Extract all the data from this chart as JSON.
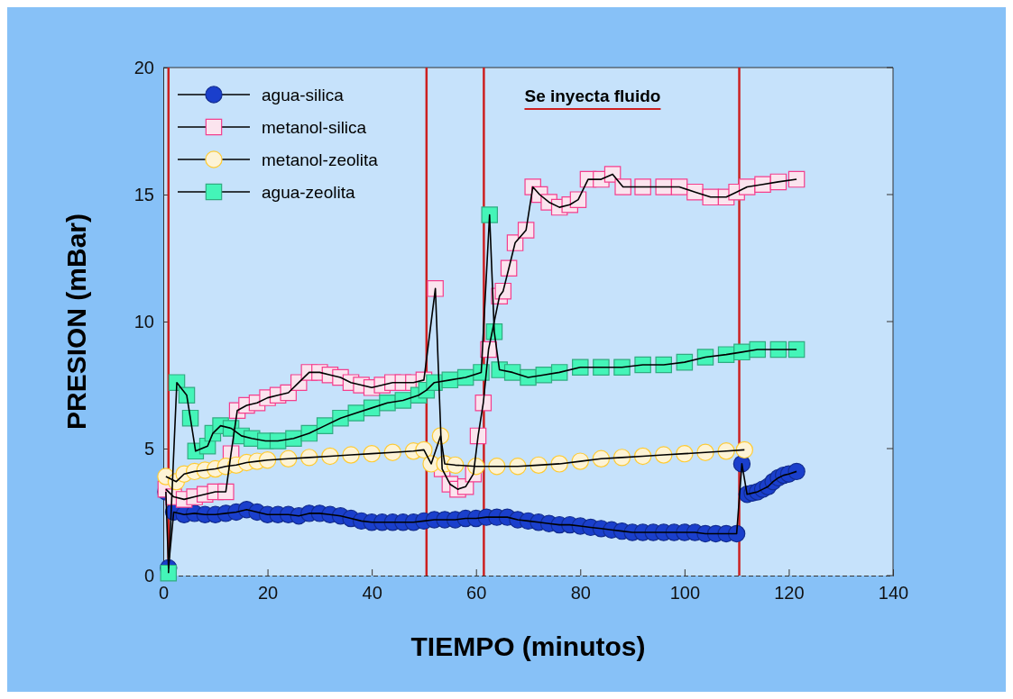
{
  "chart_data": {
    "type": "line",
    "xlabel": "TIEMPO (minutos)",
    "ylabel": "PRESION (mBar)",
    "xlim": [
      0,
      140
    ],
    "xticks": [
      0,
      20,
      40,
      60,
      80,
      100,
      120,
      140
    ],
    "ylim": [
      0,
      20
    ],
    "yticks": [
      0,
      5,
      10,
      15,
      20
    ],
    "grid": false,
    "legend": "top left",
    "line_style": "solid",
    "annotations": [
      "Se inyecta fluido"
    ],
    "ref_lines": [
      {
        "axis": "x",
        "value": 1,
        "color": "#cc2020"
      },
      {
        "axis": "x",
        "value": 50.5,
        "color": "#cc2020"
      },
      {
        "axis": "x",
        "value": 61.5,
        "color": "#cc2020"
      },
      {
        "axis": "x",
        "value": 110.5,
        "color": "#cc2020"
      }
    ],
    "series": [
      {
        "name": "agua-silica",
        "color": "#1a3fcc",
        "marker": "circle",
        "x": [
          0.5,
          1,
          2,
          4,
          6,
          8,
          10,
          12,
          14,
          16,
          18,
          20,
          22,
          24,
          26,
          28,
          30,
          32,
          34,
          36,
          38,
          40,
          42,
          44,
          46,
          48,
          50,
          52,
          54,
          56,
          58,
          60,
          62,
          64,
          66,
          68,
          70,
          72,
          74,
          76,
          78,
          80,
          82,
          84,
          86,
          88,
          90,
          92,
          94,
          96,
          98,
          100,
          102,
          104,
          106,
          108,
          110,
          111,
          112,
          113,
          114,
          115,
          116,
          117,
          118,
          119,
          120,
          121.5
        ],
        "values": [
          3.3,
          0.3,
          2.5,
          2.4,
          2.45,
          2.4,
          2.4,
          2.45,
          2.5,
          2.6,
          2.5,
          2.4,
          2.4,
          2.4,
          2.35,
          2.45,
          2.45,
          2.4,
          2.35,
          2.25,
          2.15,
          2.1,
          2.1,
          2.1,
          2.1,
          2.1,
          2.15,
          2.2,
          2.2,
          2.2,
          2.25,
          2.25,
          2.3,
          2.3,
          2.3,
          2.2,
          2.15,
          2.1,
          2.05,
          2,
          2,
          1.95,
          1.9,
          1.85,
          1.8,
          1.75,
          1.7,
          1.7,
          1.7,
          1.7,
          1.7,
          1.7,
          1.7,
          1.65,
          1.65,
          1.65,
          1.65,
          4.4,
          3.2,
          3.25,
          3.3,
          3.4,
          3.5,
          3.7,
          3.85,
          3.95,
          4,
          4.1
        ]
      },
      {
        "name": "metanol-silica",
        "color": "#fbe4ee",
        "marker": "square",
        "x": [
          0.5,
          2,
          4,
          6,
          8,
          10,
          12,
          13,
          14.2,
          16,
          18,
          20,
          22,
          24,
          26,
          28,
          30,
          32,
          34,
          36,
          38,
          40,
          42,
          44,
          46,
          48,
          50,
          52.2,
          53.5,
          55,
          56.5,
          58,
          59.5,
          60.4,
          61.4,
          62.4,
          64.5,
          65.2,
          66.3,
          67.5,
          69.6,
          70.9,
          72.2,
          74,
          76,
          78,
          79.6,
          81.5,
          84,
          86.2,
          88.2,
          92,
          96,
          99,
          102,
          105,
          108,
          110,
          112,
          115,
          118,
          121.5
        ],
        "values": [
          3.4,
          3.1,
          3,
          3.1,
          3.2,
          3.3,
          3.3,
          4.8,
          6.5,
          6.7,
          6.8,
          7,
          7.1,
          7.2,
          7.6,
          8,
          8,
          7.9,
          7.8,
          7.6,
          7.5,
          7.4,
          7.5,
          7.6,
          7.6,
          7.6,
          7.7,
          11.3,
          4.2,
          3.6,
          3.4,
          3.5,
          4,
          5.5,
          6.8,
          8.9,
          11,
          11.2,
          12.1,
          13.1,
          13.6,
          15.3,
          15,
          14.7,
          14.5,
          14.6,
          14.8,
          15.6,
          15.6,
          15.8,
          15.3,
          15.3,
          15.3,
          15.3,
          15.1,
          14.9,
          14.9,
          15.1,
          15.3,
          15.4,
          15.5,
          15.6
        ]
      },
      {
        "name": "metanol-zeolita",
        "color": "#fdf3d6",
        "marker": "circle",
        "x": [
          0.5,
          2.5,
          4,
          6,
          8,
          10,
          12,
          14,
          16,
          18,
          20,
          24,
          28,
          32,
          36,
          40,
          44,
          48,
          50,
          51.4,
          53.2,
          54,
          56,
          60,
          64,
          68,
          72,
          76,
          80,
          84,
          88,
          92,
          96,
          100,
          104,
          108,
          111.5
        ],
        "values": [
          3.9,
          3.7,
          4,
          4.1,
          4.15,
          4.2,
          4.3,
          4.35,
          4.45,
          4.5,
          4.55,
          4.6,
          4.65,
          4.7,
          4.75,
          4.8,
          4.85,
          4.9,
          4.95,
          4.4,
          5.5,
          4.4,
          4.35,
          4.3,
          4.3,
          4.3,
          4.35,
          4.4,
          4.5,
          4.6,
          4.65,
          4.7,
          4.75,
          4.8,
          4.85,
          4.9,
          4.95
        ]
      },
      {
        "name": "agua-zeolita",
        "color": "#44f5b8",
        "marker": "square",
        "x": [
          1,
          2.6,
          4.5,
          5.2,
          6.2,
          8.5,
          9.5,
          11,
          13,
          15,
          17,
          19.6,
          22,
          25,
          28,
          31,
          34,
          37,
          40,
          43,
          46,
          49,
          50.5,
          52,
          55,
          58,
          61,
          62.6,
          63.5,
          64.5,
          67,
          70,
          73,
          76,
          80,
          84,
          88,
          92,
          96,
          100,
          104,
          108,
          111,
          114,
          118,
          121.5
        ],
        "values": [
          0.1,
          7.6,
          7.1,
          6.2,
          4.9,
          5.1,
          5.6,
          5.9,
          5.8,
          5.5,
          5.4,
          5.3,
          5.3,
          5.4,
          5.6,
          5.9,
          6.2,
          6.4,
          6.6,
          6.8,
          6.9,
          7.1,
          7.3,
          7.6,
          7.7,
          7.8,
          8,
          14.2,
          9.6,
          8.1,
          8,
          7.8,
          7.9,
          8,
          8.2,
          8.2,
          8.2,
          8.3,
          8.3,
          8.4,
          8.6,
          8.7,
          8.8,
          8.9,
          8.9,
          8.9
        ]
      }
    ]
  }
}
